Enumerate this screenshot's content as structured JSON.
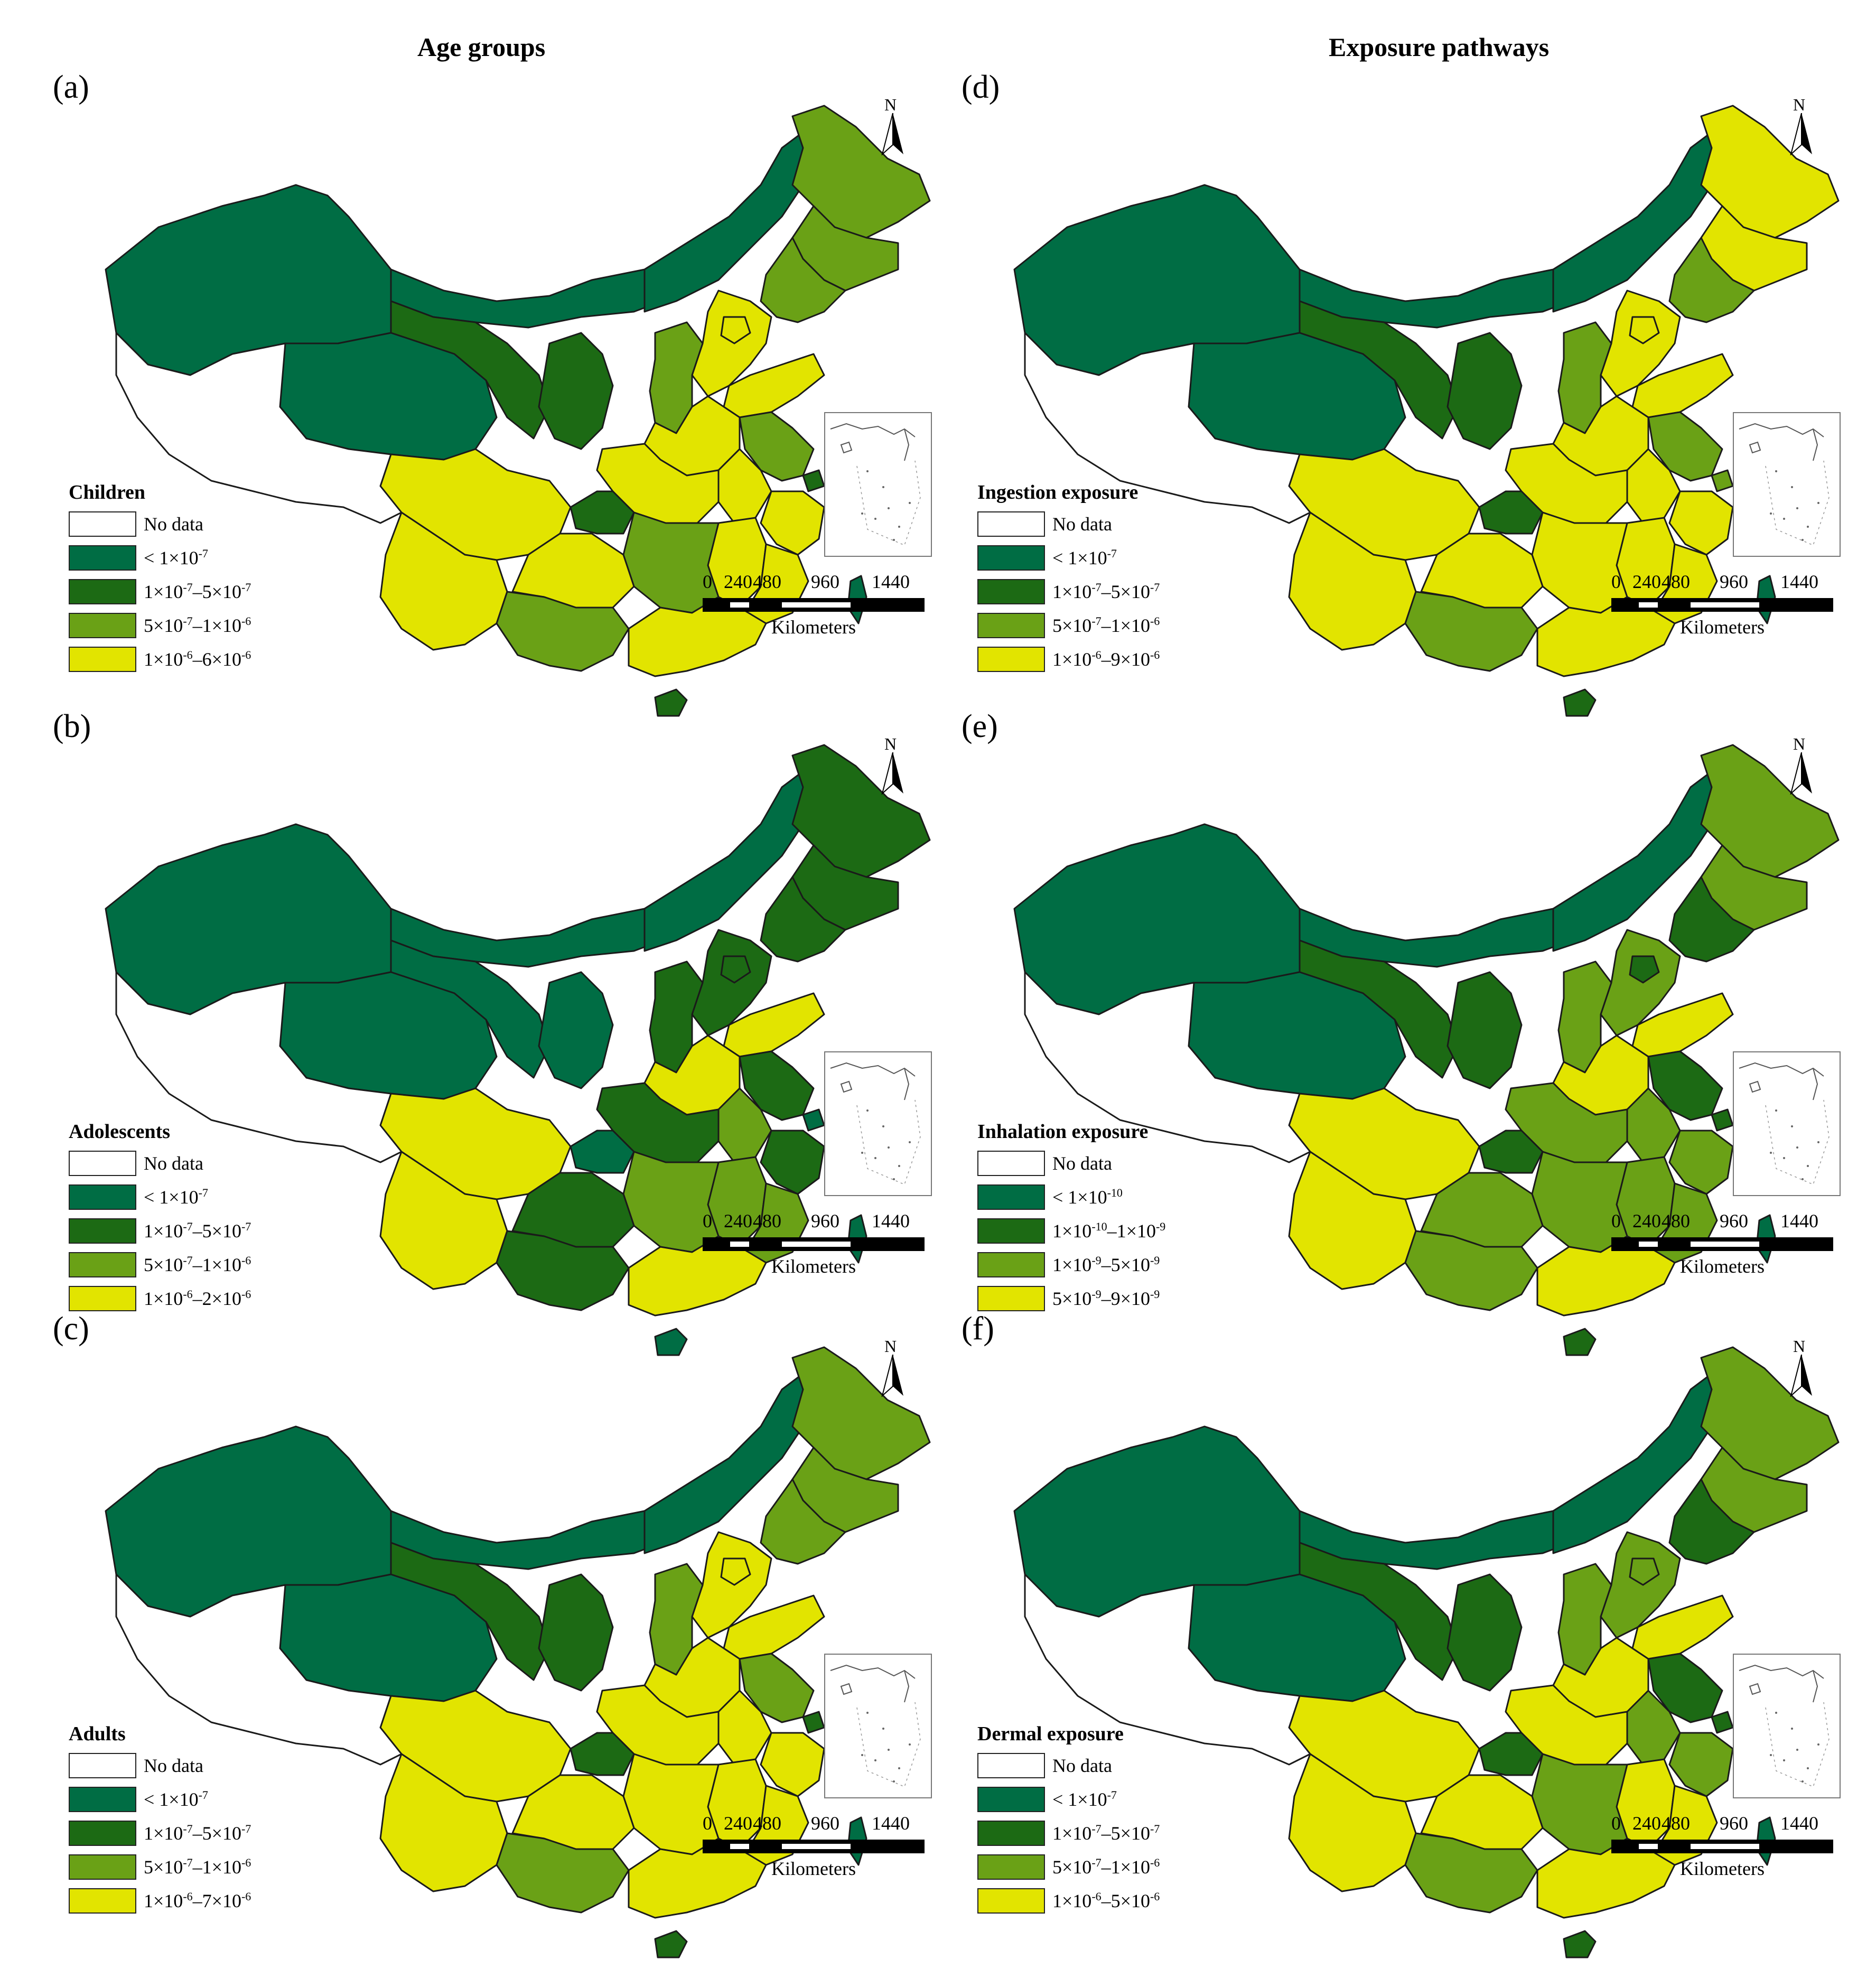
{
  "column_titles": {
    "left": "Age groups",
    "right": "Exposure pathways"
  },
  "colors": {
    "nodata": "#ffffff",
    "c1": "#006d44",
    "c2": "#1c6a14",
    "c3": "#6aa116",
    "c4": "#e2e400",
    "border": "#1a1a1a"
  },
  "panels": [
    {
      "label": "(a)",
      "legend_title": "Children",
      "legend": [
        {
          "color": "nodata",
          "label": "No data"
        },
        {
          "color": "c1",
          "label": "< 1×10⁻⁷"
        },
        {
          "color": "c2",
          "label": "1×10⁻⁷–5×10⁻⁷"
        },
        {
          "color": "c3",
          "label": "5×10⁻⁷–1×10⁻⁶"
        },
        {
          "color": "c4",
          "label": "1×10⁻⁶–6×10⁻⁶"
        }
      ],
      "fills": [
        "c1",
        "c2",
        "c1",
        "c1",
        "c1",
        "c3",
        "c3",
        "c3",
        "c2",
        "c4",
        "c4",
        "c3",
        "c4",
        "c4",
        "c3",
        "c4",
        "c2",
        "c4",
        "c4",
        "c4",
        "c4",
        "c3",
        "c4",
        "c4",
        "c4",
        "c3",
        "c2",
        "c4",
        "c2",
        "c1",
        "nodata"
      ]
    },
    {
      "label": "(b)",
      "legend_title": "Adolescents",
      "legend": [
        {
          "color": "nodata",
          "label": "No data"
        },
        {
          "color": "c1",
          "label": "< 1×10⁻⁷"
        },
        {
          "color": "c2",
          "label": "1×10⁻⁷–5×10⁻⁷"
        },
        {
          "color": "c3",
          "label": "5×10⁻⁷–1×10⁻⁶"
        },
        {
          "color": "c4",
          "label": "1×10⁻⁶–2×10⁻⁶"
        }
      ],
      "fills": [
        "c1",
        "c1",
        "c1",
        "c1",
        "c1",
        "c2",
        "c2",
        "c2",
        "c1",
        "c2",
        "c2",
        "c2",
        "c4",
        "c4",
        "c2",
        "c3",
        "c1",
        "c2",
        "c2",
        "c3",
        "c3",
        "c3",
        "c4",
        "c4",
        "c2",
        "c2",
        "c1",
        "c4",
        "c1",
        "c1",
        "nodata"
      ]
    },
    {
      "label": "(c)",
      "legend_title": "Adults",
      "legend": [
        {
          "color": "nodata",
          "label": "No data"
        },
        {
          "color": "c1",
          "label": "< 1×10⁻⁷"
        },
        {
          "color": "c2",
          "label": "1×10⁻⁷–5×10⁻⁷"
        },
        {
          "color": "c3",
          "label": "5×10⁻⁷–1×10⁻⁶"
        },
        {
          "color": "c4",
          "label": "1×10⁻⁶–7×10⁻⁶"
        }
      ],
      "fills": [
        "c1",
        "c2",
        "c1",
        "c1",
        "c1",
        "c3",
        "c3",
        "c3",
        "c2",
        "c4",
        "c4",
        "c3",
        "c4",
        "c4",
        "c3",
        "c4",
        "c2",
        "c4",
        "c4",
        "c4",
        "c4",
        "c4",
        "c4",
        "c4",
        "c4",
        "c3",
        "c2",
        "c4",
        "c2",
        "c1",
        "nodata"
      ]
    },
    {
      "label": "(d)",
      "legend_title": "Ingestion exposure",
      "legend": [
        {
          "color": "nodata",
          "label": "No data"
        },
        {
          "color": "c1",
          "label": "< 1×10⁻⁷"
        },
        {
          "color": "c2",
          "label": "1×10⁻⁷–5×10⁻⁷"
        },
        {
          "color": "c3",
          "label": "5×10⁻⁷–1×10⁻⁶"
        },
        {
          "color": "c4",
          "label": "1×10⁻⁶–9×10⁻⁶"
        }
      ],
      "fills": [
        "c1",
        "c2",
        "c1",
        "c1",
        "c1",
        "c4",
        "c4",
        "c3",
        "c2",
        "c4",
        "c4",
        "c3",
        "c4",
        "c4",
        "c3",
        "c4",
        "c3",
        "c4",
        "c4",
        "c4",
        "c4",
        "c4",
        "c4",
        "c4",
        "c4",
        "c3",
        "c2",
        "c4",
        "c2",
        "c1",
        "nodata"
      ]
    },
    {
      "label": "(e)",
      "legend_title": "Inhalation exposure",
      "legend": [
        {
          "color": "nodata",
          "label": "No data"
        },
        {
          "color": "c1",
          "label": "< 1×10⁻¹⁰"
        },
        {
          "color": "c2",
          "label": "1×10⁻¹⁰–1×10⁻⁹"
        },
        {
          "color": "c3",
          "label": "1×10⁻⁹–5×10⁻⁹"
        },
        {
          "color": "c4",
          "label": "5×10⁻⁹–9×10⁻⁹"
        }
      ],
      "fills": [
        "c1",
        "c2",
        "c1",
        "c1",
        "c1",
        "c3",
        "c3",
        "c2",
        "c2",
        "c3",
        "c2",
        "c3",
        "c4",
        "c4",
        "c2",
        "c3",
        "c2",
        "c3",
        "c3",
        "c3",
        "c3",
        "c3",
        "c4",
        "c4",
        "c3",
        "c3",
        "c2",
        "c4",
        "c2",
        "c1",
        "nodata"
      ]
    },
    {
      "label": "(f)",
      "legend_title": "Dermal exposure",
      "legend": [
        {
          "color": "nodata",
          "label": "No data"
        },
        {
          "color": "c1",
          "label": "< 1×10⁻⁷"
        },
        {
          "color": "c2",
          "label": "1×10⁻⁷–5×10⁻⁷"
        },
        {
          "color": "c3",
          "label": "5×10⁻⁷–1×10⁻⁶"
        },
        {
          "color": "c4",
          "label": "1×10⁻⁶–5×10⁻⁶"
        }
      ],
      "fills": [
        "c1",
        "c2",
        "c1",
        "c1",
        "c1",
        "c3",
        "c3",
        "c2",
        "c2",
        "c3",
        "c3",
        "c3",
        "c4",
        "c4",
        "c2",
        "c3",
        "c2",
        "c4",
        "c3",
        "c4",
        "c4",
        "c3",
        "c4",
        "c4",
        "c4",
        "c3",
        "c2",
        "c4",
        "c2",
        "c1",
        "nodata"
      ]
    }
  ],
  "scale": {
    "ticks": [
      "0",
      "240",
      "480",
      "960",
      "1440"
    ],
    "unit": "Kilometers"
  },
  "north_label": "N"
}
